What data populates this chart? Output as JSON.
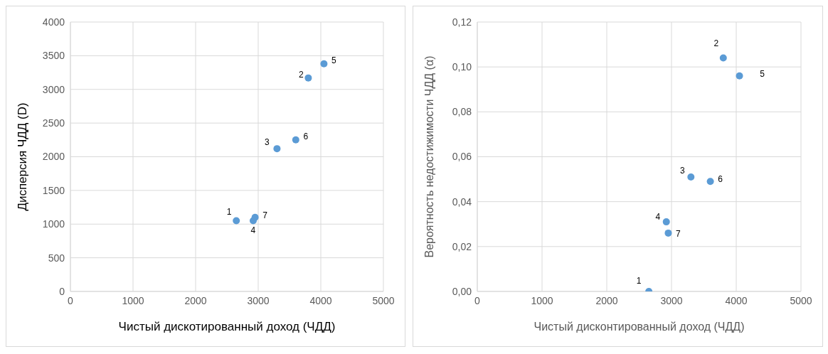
{
  "chart_data": [
    {
      "type": "scatter",
      "xlabel": "Чистый дискотированный доход (ЧДД)",
      "ylabel": "Дисперсия ЧДД (D)",
      "x": [
        2650,
        2920,
        2950,
        3300,
        3600,
        3800,
        4050
      ],
      "series": [
        {
          "color": "#5b9bd5",
          "values": [
            1050,
            1050,
            1100,
            2120,
            2250,
            3170,
            3380
          ]
        }
      ],
      "xlim": [
        0,
        5000
      ],
      "xticks": [
        0,
        1000,
        2000,
        3000,
        4000,
        5000
      ],
      "ylim": [
        0,
        4000
      ],
      "yticks": [
        0,
        500,
        1000,
        1500,
        2000,
        2500,
        3000,
        3500,
        4000
      ],
      "grid": true,
      "marker": "circle",
      "annotations": [
        {
          "text": "1",
          "x": 2650,
          "y": 1050
        },
        {
          "text": "4",
          "x": 2920,
          "y": 1050
        },
        {
          "text": "7",
          "x": 2950,
          "y": 1100
        },
        {
          "text": "3",
          "x": 3300,
          "y": 2120
        },
        {
          "text": "6",
          "x": 3600,
          "y": 2250
        },
        {
          "text": "2",
          "x": 3800,
          "y": 3170
        },
        {
          "text": "5",
          "x": 4050,
          "y": 3380
        }
      ]
    },
    {
      "type": "scatter",
      "xlabel": "Чистый дисконтированный доход (ЧДД)",
      "ylabel": "Вероятность недостижимости ЧДД (α)",
      "x": [
        2650,
        2920,
        2950,
        3300,
        3600,
        3800,
        4050
      ],
      "series": [
        {
          "color": "#5b9bd5",
          "values": [
            0,
            0.031,
            0.026,
            0.051,
            0.049,
            0.104,
            0.096
          ]
        }
      ],
      "xlim": [
        0,
        5000
      ],
      "xticks": [
        0,
        1000,
        2000,
        3000,
        4000,
        5000
      ],
      "ylim": [
        0,
        0.12
      ],
      "yticks": [
        {
          "value": 0,
          "label": "0,00"
        },
        {
          "value": 0.02,
          "label": "0,02"
        },
        {
          "value": 0.04,
          "label": "0,04"
        },
        {
          "value": 0.06,
          "label": "0,06"
        },
        {
          "value": 0.08,
          "label": "0,08"
        },
        {
          "value": 0.1,
          "label": "0,10"
        },
        {
          "value": 0.12,
          "label": "0,12"
        }
      ],
      "grid": true,
      "marker": "circle",
      "annotations": [
        {
          "text": "1",
          "x": 2650,
          "y": 0
        },
        {
          "text": "4",
          "x": 2920,
          "y": 0.031
        },
        {
          "text": "7",
          "x": 2950,
          "y": 0.026
        },
        {
          "text": "3",
          "x": 3300,
          "y": 0.051
        },
        {
          "text": "6",
          "x": 3600,
          "y": 0.049
        },
        {
          "text": "2",
          "x": 3800,
          "y": 0.104
        },
        {
          "text": "5",
          "x": 4050,
          "y": 0.096
        }
      ]
    }
  ]
}
